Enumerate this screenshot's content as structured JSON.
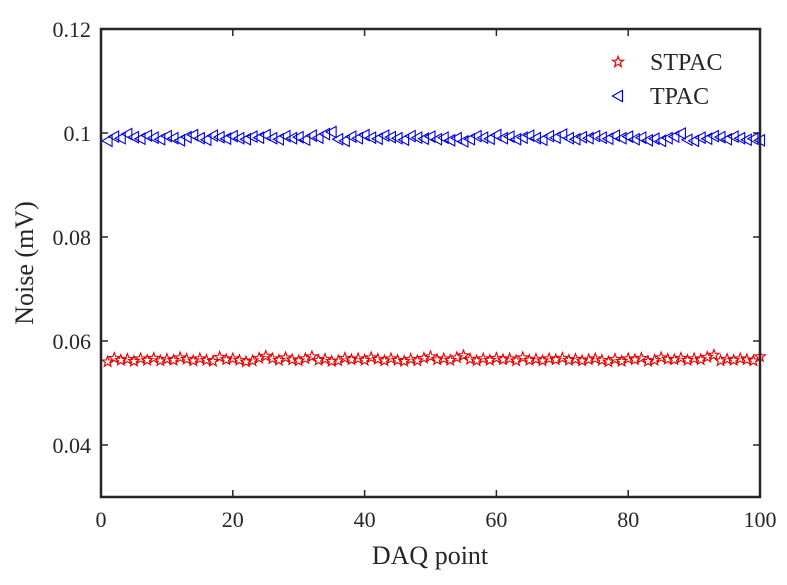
{
  "chart_data": {
    "type": "scatter",
    "title": "",
    "xlabel": "DAQ point",
    "ylabel": "Noise (mV)",
    "xlim": [
      0,
      100
    ],
    "ylim": [
      0.03,
      0.12
    ],
    "xticks": [
      "0",
      "20",
      "40",
      "60",
      "80",
      "100"
    ],
    "yticks": [
      "0.04",
      "0.06",
      "0.08",
      "0.1",
      "0.12"
    ],
    "legend_position": "top-right",
    "series": [
      {
        "name": "STPAC",
        "marker": "star",
        "color": "#e60000",
        "x": [
          1,
          2,
          3,
          4,
          5,
          6,
          7,
          8,
          9,
          10,
          11,
          12,
          13,
          14,
          15,
          16,
          17,
          18,
          19,
          20,
          21,
          22,
          23,
          24,
          25,
          26,
          27,
          28,
          29,
          30,
          31,
          32,
          33,
          34,
          35,
          36,
          37,
          38,
          39,
          40,
          41,
          42,
          43,
          44,
          45,
          46,
          47,
          48,
          49,
          50,
          51,
          52,
          53,
          54,
          55,
          56,
          57,
          58,
          59,
          60,
          61,
          62,
          63,
          64,
          65,
          66,
          67,
          68,
          69,
          70,
          71,
          72,
          73,
          74,
          75,
          76,
          77,
          78,
          79,
          80,
          81,
          82,
          83,
          84,
          85,
          86,
          87,
          88,
          89,
          90,
          91,
          92,
          93,
          94,
          95,
          96,
          97,
          98,
          99,
          100
        ],
        "values": [
          0.056,
          0.0567,
          0.0563,
          0.0565,
          0.0561,
          0.0566,
          0.0563,
          0.0567,
          0.0562,
          0.0565,
          0.0563,
          0.0568,
          0.0565,
          0.0562,
          0.0566,
          0.0563,
          0.0561,
          0.0569,
          0.0564,
          0.0566,
          0.0563,
          0.056,
          0.0562,
          0.0567,
          0.0571,
          0.0566,
          0.0563,
          0.0568,
          0.0564,
          0.0562,
          0.0566,
          0.057,
          0.0563,
          0.0565,
          0.0561,
          0.0562,
          0.0567,
          0.0564,
          0.0566,
          0.0563,
          0.0568,
          0.0565,
          0.0562,
          0.0566,
          0.0563,
          0.0561,
          0.0565,
          0.0562,
          0.0567,
          0.057,
          0.0564,
          0.0566,
          0.0563,
          0.0568,
          0.0572,
          0.0565,
          0.0562,
          0.0566,
          0.0563,
          0.0567,
          0.0564,
          0.0566,
          0.0562,
          0.0568,
          0.0563,
          0.0565,
          0.0562,
          0.0566,
          0.0564,
          0.0567,
          0.0563,
          0.0565,
          0.0562,
          0.0564,
          0.0566,
          0.0563,
          0.056,
          0.0565,
          0.0561,
          0.0566,
          0.0564,
          0.0567,
          0.0561,
          0.0563,
          0.0568,
          0.0565,
          0.0564,
          0.0567,
          0.0563,
          0.0566,
          0.0564,
          0.0569,
          0.0573,
          0.0562,
          0.0565,
          0.0563,
          0.0566,
          0.0564,
          0.0562,
          0.057
        ]
      },
      {
        "name": "TPAC",
        "marker": "triangle-left",
        "color": "#0000e6",
        "x": [
          1,
          2,
          3,
          4,
          5,
          6,
          7,
          8,
          9,
          10,
          11,
          12,
          13,
          14,
          15,
          16,
          17,
          18,
          19,
          20,
          21,
          22,
          23,
          24,
          25,
          26,
          27,
          28,
          29,
          30,
          31,
          32,
          33,
          34,
          35,
          36,
          37,
          38,
          39,
          40,
          41,
          42,
          43,
          44,
          45,
          46,
          47,
          48,
          49,
          50,
          51,
          52,
          53,
          54,
          55,
          56,
          57,
          58,
          59,
          60,
          61,
          62,
          63,
          64,
          65,
          66,
          67,
          68,
          69,
          70,
          71,
          72,
          73,
          74,
          75,
          76,
          77,
          78,
          79,
          80,
          81,
          82,
          83,
          84,
          85,
          86,
          87,
          88,
          89,
          90,
          91,
          92,
          93,
          94,
          95,
          96,
          97,
          98,
          99,
          100
        ],
        "values": [
          0.0985,
          0.0993,
          0.099,
          0.0998,
          0.0992,
          0.0989,
          0.0995,
          0.0991,
          0.0988,
          0.0994,
          0.099,
          0.0986,
          0.0992,
          0.0996,
          0.099,
          0.0987,
          0.0995,
          0.0992,
          0.0989,
          0.0994,
          0.099,
          0.0988,
          0.0993,
          0.0991,
          0.0996,
          0.099,
          0.0988,
          0.0994,
          0.099,
          0.0992,
          0.0987,
          0.0995,
          0.0991,
          0.0998,
          0.1002,
          0.0988,
          0.0985,
          0.0993,
          0.099,
          0.0996,
          0.0991,
          0.0989,
          0.0995,
          0.0992,
          0.099,
          0.0987,
          0.0994,
          0.0991,
          0.0989,
          0.0993,
          0.0988,
          0.0991,
          0.0986,
          0.099,
          0.0984,
          0.0988,
          0.0994,
          0.0991,
          0.0989,
          0.0996,
          0.099,
          0.0993,
          0.0988,
          0.0991,
          0.0995,
          0.099,
          0.0987,
          0.0994,
          0.0991,
          0.0997,
          0.099,
          0.0988,
          0.0992,
          0.099,
          0.0994,
          0.0991,
          0.0989,
          0.0995,
          0.099,
          0.0993,
          0.0988,
          0.0991,
          0.0986,
          0.0989,
          0.0985,
          0.099,
          0.0993,
          0.0999,
          0.0987,
          0.0985,
          0.0991,
          0.0989,
          0.0994,
          0.0992,
          0.0988,
          0.0993,
          0.099,
          0.0987,
          0.0989,
          0.0986
        ]
      }
    ]
  }
}
